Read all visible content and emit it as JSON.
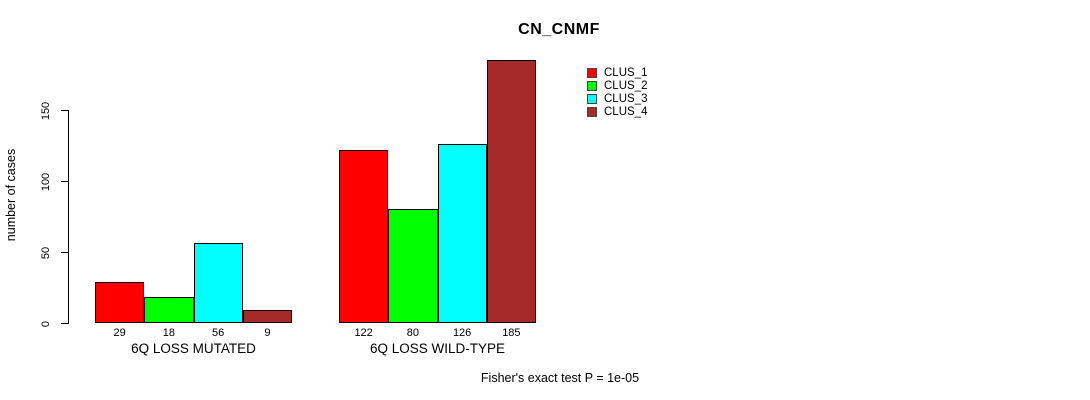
{
  "title": "CN_CNMF",
  "y_axis": {
    "label": "number of cases",
    "ticks": [
      0,
      50,
      100,
      150
    ]
  },
  "groups": [
    {
      "label": "6Q LOSS MUTATED",
      "values": [
        29,
        18,
        56,
        9
      ]
    },
    {
      "label": "6Q LOSS WILD-TYPE",
      "values": [
        122,
        80,
        126,
        185
      ]
    }
  ],
  "legend": [
    {
      "label": "CLUS_1",
      "color": "#FF0000"
    },
    {
      "label": "CLUS_2",
      "color": "#00FF00"
    },
    {
      "label": "CLUS_3",
      "color": "#00FFFF"
    },
    {
      "label": "CLUS_4",
      "color": "#A52A2A"
    }
  ],
  "footer": "Fisher's exact test P = 1e-05",
  "chart_data": {
    "type": "bar",
    "title": "CN_CNMF",
    "ylabel": "number of cases",
    "xlabel": "",
    "categories": [
      "6Q LOSS MUTATED",
      "6Q LOSS WILD-TYPE"
    ],
    "series": [
      {
        "name": "CLUS_1",
        "color": "#FF0000",
        "values": [
          29,
          122
        ]
      },
      {
        "name": "CLUS_2",
        "color": "#00FF00",
        "values": [
          18,
          80
        ]
      },
      {
        "name": "CLUS_3",
        "color": "#00FFFF",
        "values": [
          56,
          126
        ]
      },
      {
        "name": "CLUS_4",
        "color": "#A52A2A",
        "values": [
          9,
          185
        ]
      }
    ],
    "ylim": [
      0,
      150
    ],
    "yticks": [
      0,
      50,
      100,
      150
    ],
    "grid": false,
    "bar_value_labels": true,
    "legend_position": "inside-top-right",
    "annotation": "Fisher's exact test P = 1e-05"
  }
}
